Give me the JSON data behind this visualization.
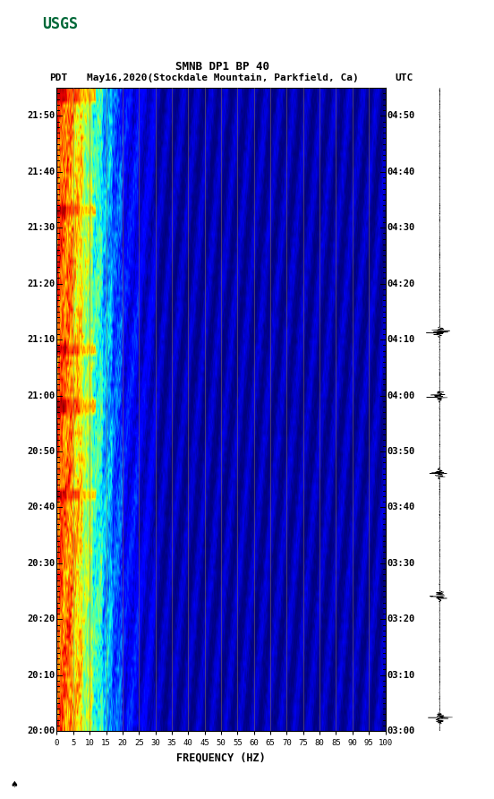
{
  "title_line1": "SMNB DP1 BP 40",
  "title_line2_left": "PDT",
  "title_line2_mid": "May16,2020(Stockdale Mountain, Parkfield, Ca)",
  "title_line2_right": "UTC",
  "xlabel": "FREQUENCY (HZ)",
  "freq_min": 0,
  "freq_max": 100,
  "freq_ticks": [
    0,
    5,
    10,
    15,
    20,
    25,
    30,
    35,
    40,
    45,
    50,
    55,
    60,
    65,
    70,
    75,
    80,
    85,
    90,
    95,
    100
  ],
  "left_time_labels": [
    "20:00",
    "20:10",
    "20:20",
    "20:30",
    "20:40",
    "20:50",
    "21:00",
    "21:10",
    "21:20",
    "21:30",
    "21:40",
    "21:50"
  ],
  "right_time_labels": [
    "03:00",
    "03:10",
    "03:20",
    "03:30",
    "03:40",
    "03:50",
    "04:00",
    "04:10",
    "04:20",
    "04:30",
    "04:40",
    "04:50"
  ],
  "n_time_steps": 120,
  "n_freq_steps": 500,
  "bg_color": "white",
  "vertical_line_color": "#8B7355",
  "vertical_line_alpha": 0.6,
  "vertical_line_positions": [
    5,
    10,
    15,
    20,
    25,
    30,
    35,
    40,
    45,
    50,
    55,
    60,
    65,
    70,
    75,
    80,
    85,
    90,
    95,
    100
  ],
  "seismogram_color": "black",
  "usgs_green": "#006838",
  "event_rows": [
    0,
    1,
    2,
    22,
    23,
    48,
    49,
    58,
    59,
    60,
    75,
    76
  ],
  "seismo_events": [
    0.02,
    0.21,
    0.4,
    0.52,
    0.62
  ]
}
